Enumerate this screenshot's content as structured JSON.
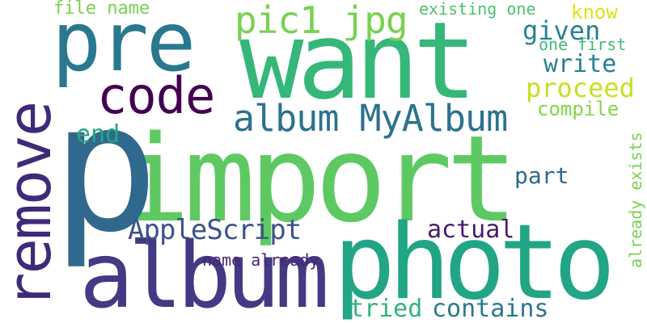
{
  "word_cloud": {
    "background": "#ffffff",
    "words": [
      {
        "key": "import",
        "text": "import",
        "color": "#5ec962",
        "orientation": "horizontal"
      },
      {
        "key": "p",
        "text": "p",
        "color": "#31688e",
        "orientation": "horizontal"
      },
      {
        "key": "want",
        "text": "want",
        "color": "#35b779",
        "orientation": "horizontal"
      },
      {
        "key": "photo",
        "text": "photo",
        "color": "#21a585",
        "orientation": "horizontal"
      },
      {
        "key": "album",
        "text": "album",
        "color": "#443983",
        "orientation": "horizontal"
      },
      {
        "key": "remove",
        "text": "remove",
        "color": "#3f2a7a",
        "orientation": "vertical"
      },
      {
        "key": "pre",
        "text": "pre",
        "color": "#2a788e",
        "orientation": "horizontal"
      },
      {
        "key": "code",
        "text": "code",
        "color": "#440154",
        "orientation": "horizontal"
      },
      {
        "key": "pic1_jpg",
        "text": "pic1 jpg",
        "color": "#7ad151",
        "orientation": "horizontal"
      },
      {
        "key": "album_myalbum",
        "text": "album MyAlbum",
        "color": "#2c728e",
        "orientation": "horizontal"
      },
      {
        "key": "applescript",
        "text": "AppleScript",
        "color": "#3b528b",
        "orientation": "horizontal"
      },
      {
        "key": "file_name",
        "text": "file name",
        "color": "#7ad151",
        "orientation": "horizontal"
      },
      {
        "key": "existing_one",
        "text": "existing one",
        "color": "#4ac16d",
        "orientation": "horizontal"
      },
      {
        "key": "know",
        "text": "know",
        "color": "#dde318",
        "orientation": "horizontal"
      },
      {
        "key": "given",
        "text": "given",
        "color": "#26828e",
        "orientation": "horizontal"
      },
      {
        "key": "one_first",
        "text": "one first",
        "color": "#3dbc74",
        "orientation": "horizontal"
      },
      {
        "key": "write",
        "text": "write",
        "color": "#26828e",
        "orientation": "horizontal"
      },
      {
        "key": "proceed",
        "text": "proceed",
        "color": "#c8e020",
        "orientation": "horizontal"
      },
      {
        "key": "compile",
        "text": "compile",
        "color": "#86d549",
        "orientation": "horizontal"
      },
      {
        "key": "end",
        "text": "end",
        "color": "#22a884",
        "orientation": "horizontal"
      },
      {
        "key": "part",
        "text": "part",
        "color": "#31688e",
        "orientation": "horizontal"
      },
      {
        "key": "actual",
        "text": "actual",
        "color": "#481b6d",
        "orientation": "horizontal"
      },
      {
        "key": "name_already",
        "text": "name already",
        "color": "#482475",
        "orientation": "horizontal"
      },
      {
        "key": "tried",
        "text": "tried",
        "color": "#2fb47c",
        "orientation": "horizontal"
      },
      {
        "key": "contains",
        "text": "contains",
        "color": "#2a788e",
        "orientation": "horizontal"
      },
      {
        "key": "already_exists",
        "text": "already exists",
        "color": "#7ad151",
        "orientation": "vertical"
      }
    ]
  }
}
